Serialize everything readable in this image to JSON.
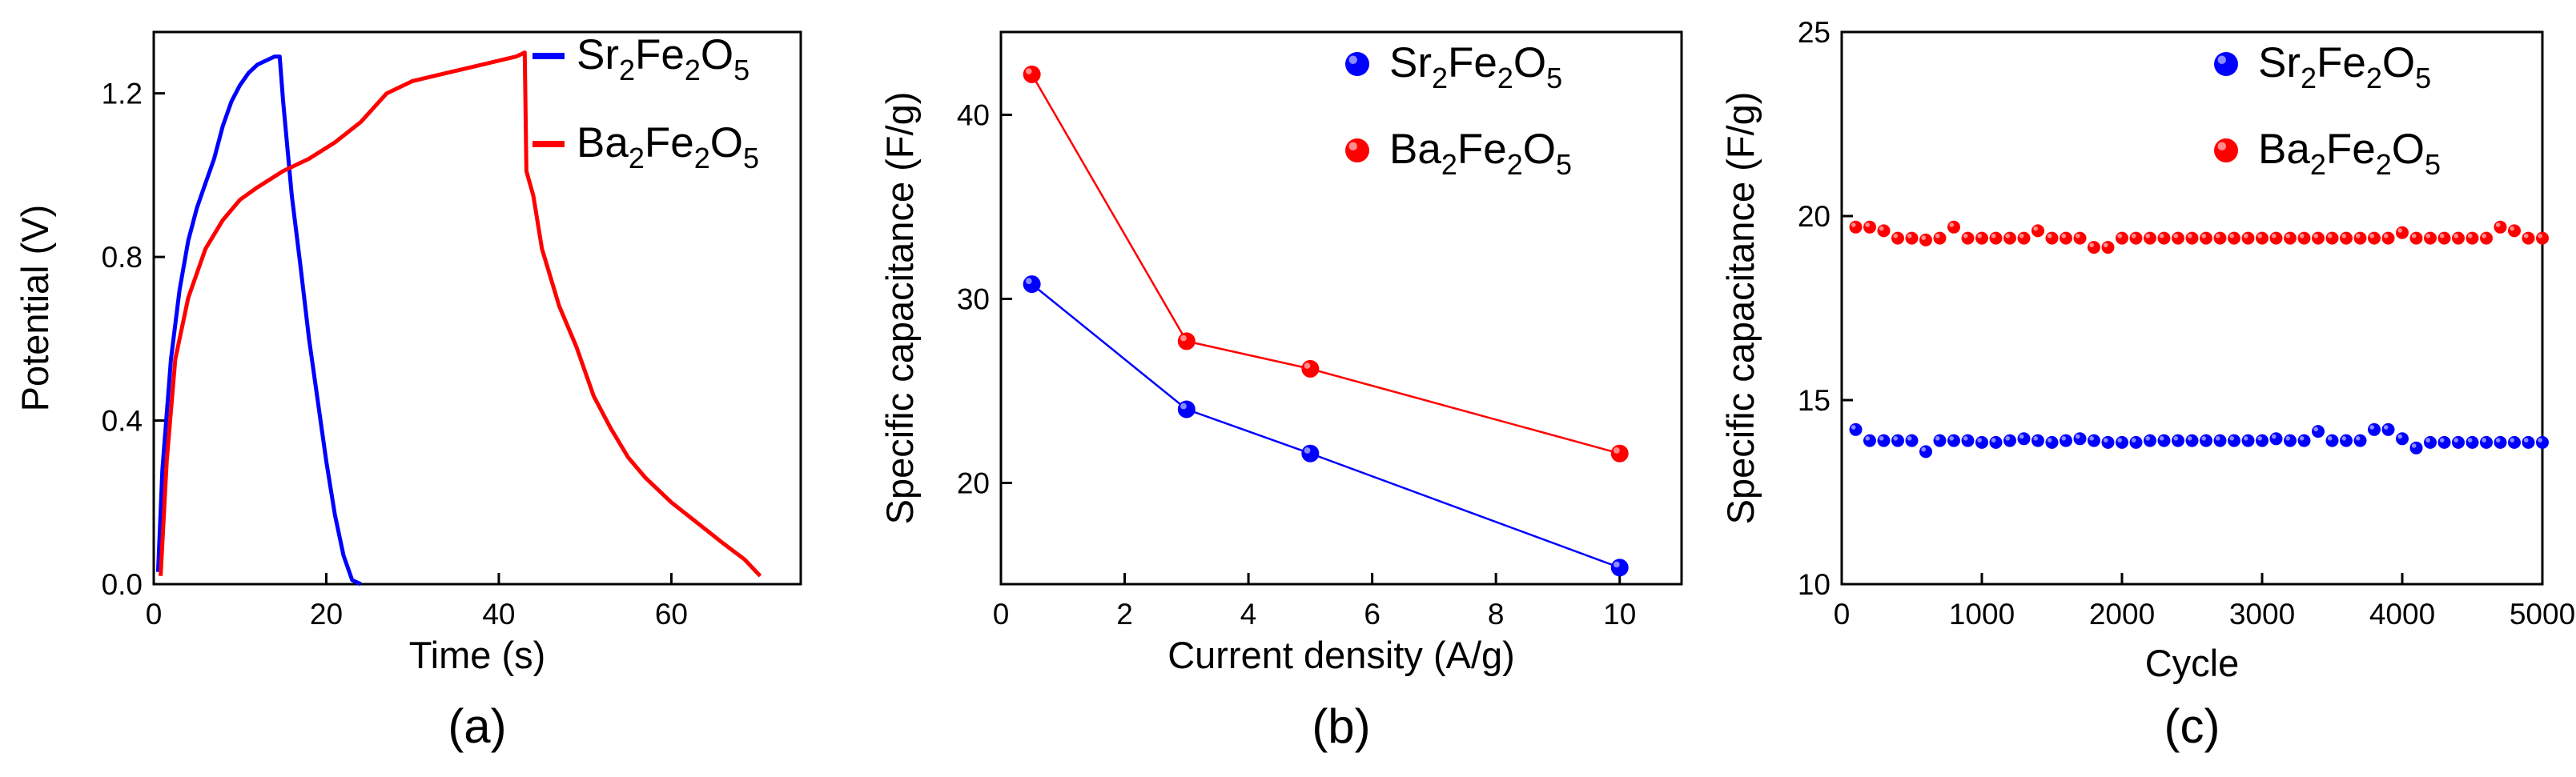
{
  "chart_data": [
    {
      "id": "a",
      "type": "line",
      "panel_label": "(a)",
      "xlabel": "Time (s)",
      "ylabel": "Potential (V)",
      "xlim": [
        0,
        75
      ],
      "ylim": [
        0,
        1.35
      ],
      "xticks": [
        0,
        20,
        40,
        60
      ],
      "yticks": [
        0.0,
        0.4,
        0.8,
        1.2
      ],
      "ytick_labels": [
        "0.0",
        "0.4",
        "0.8",
        "1.2"
      ],
      "legend_position": "top-right",
      "series": [
        {
          "name": "Sr2Fe2O5",
          "formula": [
            [
              "Sr",
              "2"
            ],
            [
              "Fe",
              "2"
            ],
            [
              "O",
              "5"
            ]
          ],
          "color": "#0000ff",
          "x": [
            0.5,
            1.0,
            2.0,
            3.0,
            4.0,
            5.0,
            6.0,
            7.0,
            8.0,
            9.0,
            10.0,
            11.0,
            12.0,
            13.0,
            14.0,
            14.6,
            15.0,
            16.0,
            17.0,
            18.0,
            19.0,
            20.0,
            21.0,
            22.0,
            23.0,
            24.0
          ],
          "y": [
            0.03,
            0.28,
            0.55,
            0.72,
            0.84,
            0.92,
            0.98,
            1.04,
            1.12,
            1.18,
            1.22,
            1.25,
            1.27,
            1.28,
            1.29,
            1.29,
            1.18,
            0.95,
            0.78,
            0.6,
            0.45,
            0.3,
            0.17,
            0.07,
            0.01,
            0.0
          ]
        },
        {
          "name": "Ba2Fe2O5",
          "formula": [
            [
              "Ba",
              "2"
            ],
            [
              "Fe",
              "2"
            ],
            [
              "O",
              "5"
            ]
          ],
          "color": "#ff0000",
          "x": [
            0.8,
            1.5,
            2.5,
            4.0,
            6.0,
            8.0,
            10.0,
            12.0,
            15.0,
            18.0,
            21.0,
            24.0,
            27.0,
            30.0,
            34.0,
            38.0,
            42.0,
            43.0,
            43.2,
            44.0,
            45.0,
            47.0,
            49.0,
            51.0,
            53.0,
            55.0,
            57.0,
            60.0,
            63.0,
            66.0,
            68.5,
            70.3
          ],
          "y": [
            0.02,
            0.3,
            0.55,
            0.7,
            0.82,
            0.89,
            0.94,
            0.97,
            1.01,
            1.04,
            1.08,
            1.13,
            1.2,
            1.23,
            1.25,
            1.27,
            1.29,
            1.3,
            1.01,
            0.95,
            0.82,
            0.68,
            0.58,
            0.46,
            0.38,
            0.31,
            0.26,
            0.2,
            0.15,
            0.1,
            0.06,
            0.02
          ]
        }
      ]
    },
    {
      "id": "b",
      "type": "line",
      "panel_label": "(b)",
      "xlabel": "Current density (A/g)",
      "ylabel": "Specific capacitance (F/g)",
      "xlim": [
        0,
        11
      ],
      "ylim": [
        14.5,
        44.5
      ],
      "xticks": [
        0,
        2,
        4,
        6,
        8,
        10
      ],
      "yticks": [
        20,
        30,
        40
      ],
      "legend_position": "top-right",
      "series": [
        {
          "name": "Sr2Fe2O5",
          "formula": [
            [
              "Sr",
              "2"
            ],
            [
              "Fe",
              "2"
            ],
            [
              "O",
              "5"
            ]
          ],
          "color": "#0000ff",
          "x": [
            0.5,
            3,
            5,
            10
          ],
          "y": [
            30.8,
            24.0,
            21.6,
            15.4
          ]
        },
        {
          "name": "Ba2Fe2O5",
          "formula": [
            [
              "Ba",
              "2"
            ],
            [
              "Fe",
              "2"
            ],
            [
              "O",
              "5"
            ]
          ],
          "color": "#ff0000",
          "x": [
            0.5,
            3,
            5,
            10
          ],
          "y": [
            42.2,
            27.7,
            26.2,
            21.6
          ]
        }
      ]
    },
    {
      "id": "c",
      "type": "scatter",
      "panel_label": "(c)",
      "xlabel": "Cycle",
      "ylabel": "Specific capacitance (F/g)",
      "xlim": [
        0,
        5000
      ],
      "ylim": [
        10,
        25
      ],
      "xticks": [
        0,
        1000,
        2000,
        3000,
        4000,
        5000
      ],
      "yticks": [
        10,
        15,
        20,
        25
      ],
      "legend_position": "top-right",
      "series": [
        {
          "name": "Sr2Fe2O5",
          "formula": [
            [
              "Sr",
              "2"
            ],
            [
              "Fe",
              "2"
            ],
            [
              "O",
              "5"
            ]
          ],
          "color": "#0000ff",
          "x": [
            100,
            200,
            300,
            400,
            500,
            600,
            700,
            800,
            900,
            1000,
            1100,
            1200,
            1300,
            1400,
            1500,
            1600,
            1700,
            1800,
            1900,
            2000,
            2100,
            2200,
            2300,
            2400,
            2500,
            2600,
            2700,
            2800,
            2900,
            3000,
            3100,
            3200,
            3300,
            3400,
            3500,
            3600,
            3700,
            3800,
            3900,
            4000,
            4100,
            4200,
            4300,
            4400,
            4500,
            4600,
            4700,
            4800,
            4900,
            5000
          ],
          "y": [
            14.2,
            13.9,
            13.9,
            13.9,
            13.9,
            13.6,
            13.9,
            13.9,
            13.9,
            13.85,
            13.85,
            13.9,
            13.95,
            13.9,
            13.85,
            13.9,
            13.95,
            13.9,
            13.85,
            13.85,
            13.85,
            13.9,
            13.9,
            13.9,
            13.9,
            13.9,
            13.9,
            13.9,
            13.9,
            13.9,
            13.95,
            13.9,
            13.9,
            14.15,
            13.9,
            13.9,
            13.9,
            14.2,
            14.2,
            13.95,
            13.7,
            13.85,
            13.85,
            13.85,
            13.85,
            13.85,
            13.85,
            13.85,
            13.85,
            13.85
          ]
        },
        {
          "name": "Ba2Fe2O5",
          "formula": [
            [
              "Ba",
              "2"
            ],
            [
              "Fe",
              "2"
            ],
            [
              "O",
              "5"
            ]
          ],
          "color": "#ff0000",
          "x": [
            100,
            200,
            300,
            400,
            500,
            600,
            700,
            800,
            900,
            1000,
            1100,
            1200,
            1300,
            1400,
            1500,
            1600,
            1700,
            1800,
            1900,
            2000,
            2100,
            2200,
            2300,
            2400,
            2500,
            2600,
            2700,
            2800,
            2900,
            3000,
            3100,
            3200,
            3300,
            3400,
            3500,
            3600,
            3700,
            3800,
            3900,
            4000,
            4100,
            4200,
            4300,
            4400,
            4500,
            4600,
            4700,
            4800,
            4900,
            5000
          ],
          "y": [
            19.7,
            19.7,
            19.6,
            19.4,
            19.4,
            19.35,
            19.4,
            19.7,
            19.4,
            19.4,
            19.4,
            19.4,
            19.4,
            19.6,
            19.4,
            19.4,
            19.4,
            19.15,
            19.15,
            19.4,
            19.4,
            19.4,
            19.4,
            19.4,
            19.4,
            19.4,
            19.4,
            19.4,
            19.4,
            19.4,
            19.4,
            19.4,
            19.4,
            19.4,
            19.4,
            19.4,
            19.4,
            19.4,
            19.4,
            19.55,
            19.4,
            19.4,
            19.4,
            19.4,
            19.4,
            19.4,
            19.7,
            19.6,
            19.4,
            19.4
          ]
        }
      ]
    }
  ]
}
